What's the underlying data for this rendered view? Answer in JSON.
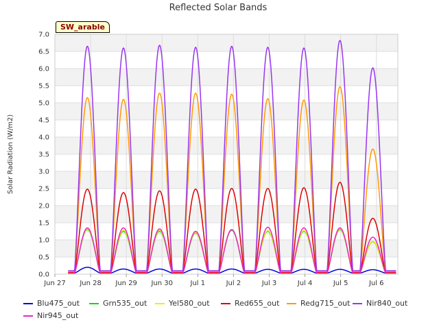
{
  "chart_data": {
    "type": "line",
    "title": "Reflected Solar Bands",
    "ylabel": "Solar Radiation (W/m2)",
    "xlabel": "",
    "badge": "SW_arable",
    "ylim": [
      0,
      7.0
    ],
    "yticks": [
      "0.0",
      "0.5",
      "1.0",
      "1.5",
      "2.0",
      "2.5",
      "3.0",
      "3.5",
      "4.0",
      "4.5",
      "5.0",
      "5.5",
      "6.0",
      "6.5",
      "7.0"
    ],
    "xticks": [
      "Jun 27",
      "Jun 28",
      "Jun 29",
      "Jun 30",
      "Jul 1",
      "Jul 2",
      "Jul 3",
      "Jul 4",
      "Jul 5",
      "Jul 6"
    ],
    "x_start": "Jun 27",
    "x_span_days": 9.6,
    "data_start_day": 0.37,
    "data_end_day": 9.55,
    "peak_days": [
      0.91,
      1.92,
      2.93,
      3.94,
      4.95,
      5.96,
      6.97,
      7.98,
      8.9
    ],
    "grid": true,
    "legend_position": "bottom",
    "series": [
      {
        "name": "Blu475_out",
        "color": "#0000dd",
        "peaks": [
          0.2,
          0.15,
          0.15,
          0.15,
          0.15,
          0.14,
          0.14,
          0.14,
          0.13
        ],
        "night": 0.03
      },
      {
        "name": "Grn535_out",
        "color": "#00dd00",
        "peaks": [
          1.3,
          1.25,
          1.25,
          1.2,
          1.28,
          1.25,
          1.25,
          1.3,
          0.95
        ],
        "night": 0.03
      },
      {
        "name": "Yel580_out",
        "color": "#eeee00",
        "peaks": [
          1.32,
          1.28,
          1.28,
          1.22,
          1.3,
          1.27,
          1.27,
          1.32,
          0.96
        ],
        "night": 0.03
      },
      {
        "name": "Red655_out",
        "color": "#dd0000",
        "peaks": [
          2.48,
          2.38,
          2.43,
          2.48,
          2.5,
          2.5,
          2.52,
          2.68,
          1.63
        ],
        "night": 0.05
      },
      {
        "name": "Redg715_out",
        "color": "#ff9900",
        "peaks": [
          5.15,
          5.1,
          5.28,
          5.28,
          5.25,
          5.12,
          5.08,
          5.47,
          3.65
        ],
        "night": 0.08
      },
      {
        "name": "Nir840_out",
        "color": "#9933ee",
        "peaks": [
          6.65,
          6.6,
          6.68,
          6.62,
          6.65,
          6.62,
          6.6,
          6.82,
          6.02
        ],
        "night": 0.1
      },
      {
        "name": "Nir945_out",
        "color": "#ee22cc",
        "peaks": [
          1.35,
          1.35,
          1.32,
          1.25,
          1.3,
          1.37,
          1.35,
          1.35,
          1.08
        ],
        "night": 0.03
      }
    ]
  }
}
